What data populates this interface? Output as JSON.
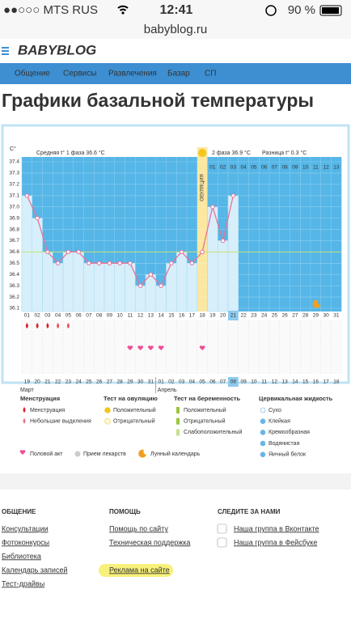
{
  "status_bar": {
    "carrier": "●●○○○ MTS RUS",
    "time": "12:41",
    "battery": "90 %"
  },
  "url": "babyblog.ru",
  "logo": "BABYBLOG",
  "nav": [
    "Общение",
    "Сервисы",
    "Развлечения",
    "Базар",
    "СП"
  ],
  "title": "Графики базальной температуры",
  "chart": {
    "type": "line",
    "y_unit": "C°",
    "phase1": "Средняя t° 1 фаза 36.6 °C",
    "phase2": "2 фаза 36.9 °C",
    "difference": "Разница t° 0.3 °C",
    "ovulation": "ОВУЛЯЦИЯ",
    "cycle_days": [
      "01",
      "02",
      "03",
      "04",
      "05",
      "06",
      "07",
      "08",
      "09",
      "10",
      "11",
      "12",
      "13",
      "14",
      "15",
      "16",
      "17",
      "18",
      "19",
      "20",
      "21",
      "22",
      "23",
      "24",
      "25",
      "26",
      "27",
      "28",
      "29",
      "30",
      "31"
    ],
    "phase2_days": [
      "01",
      "02",
      "03",
      "04",
      "05",
      "06",
      "07",
      "08",
      "09",
      "10",
      "11",
      "12",
      "13"
    ],
    "dates": [
      "19",
      "20",
      "21",
      "22",
      "23",
      "24",
      "25",
      "26",
      "27",
      "28",
      "29",
      "30",
      "31",
      "01",
      "02",
      "03",
      "04",
      "05",
      "06",
      "07",
      "08",
      "09",
      "10",
      "11",
      "12",
      "13",
      "14",
      "15",
      "16",
      "17",
      "18"
    ],
    "months": [
      "Март",
      "Апрель"
    ],
    "values": [
      37.1,
      36.9,
      36.6,
      36.5,
      36.6,
      36.6,
      36.5,
      36.5,
      36.5,
      36.5,
      36.5,
      36.3,
      36.4,
      36.3,
      36.5,
      36.6,
      36.5,
      36.6,
      37.0,
      36.7,
      37.1,
      null,
      null,
      null,
      null,
      null,
      null,
      null,
      null,
      null,
      null
    ],
    "coverline": 36.6,
    "ylim": [
      36.1,
      37.4
    ],
    "yticks": [
      36.1,
      36.2,
      36.3,
      36.4,
      36.5,
      36.6,
      36.7,
      36.8,
      36.9,
      {
        "value": 37,
        "label": "37.0"
      },
      37.1,
      37.2,
      37.3,
      37.4
    ]
  },
  "legend": {
    "groups": [
      {
        "title": "Менструация",
        "items": [
          "Менструация",
          "Небольшие выделения"
        ]
      },
      {
        "title": "Тест на овуляцию",
        "items": [
          "Положительный",
          "Отрицательный"
        ]
      },
      {
        "title": "Тест на беременность",
        "items": [
          "Положительный",
          "Отрицательный",
          "Слабоположительный"
        ]
      },
      {
        "title": "Цервикальная жидкость",
        "items": [
          "Сухо",
          "Клейкая",
          "Кремообразная",
          "Водянистая",
          "Яичный белок"
        ]
      }
    ],
    "other": [
      "Половой акт",
      "Прием лекарств",
      "Лунный календарь"
    ]
  },
  "footer": {
    "columns": [
      {
        "title": "ОБЩЕНИЕ",
        "links": [
          "Консультации",
          "Фотоконкурсы",
          "Библиотека",
          "Календарь записей",
          "Тест-драйвы"
        ]
      },
      {
        "title": "ПОМОЩЬ",
        "links": [
          "Помощь по сайту",
          "Техническая поддержка",
          "Реклама на сайте"
        ]
      },
      {
        "title": "СЛЕДИТЕ ЗА НАМИ",
        "links": [
          "Наша группа в Вконтакте",
          "Наша группа в Фейсбуке"
        ]
      }
    ]
  }
}
